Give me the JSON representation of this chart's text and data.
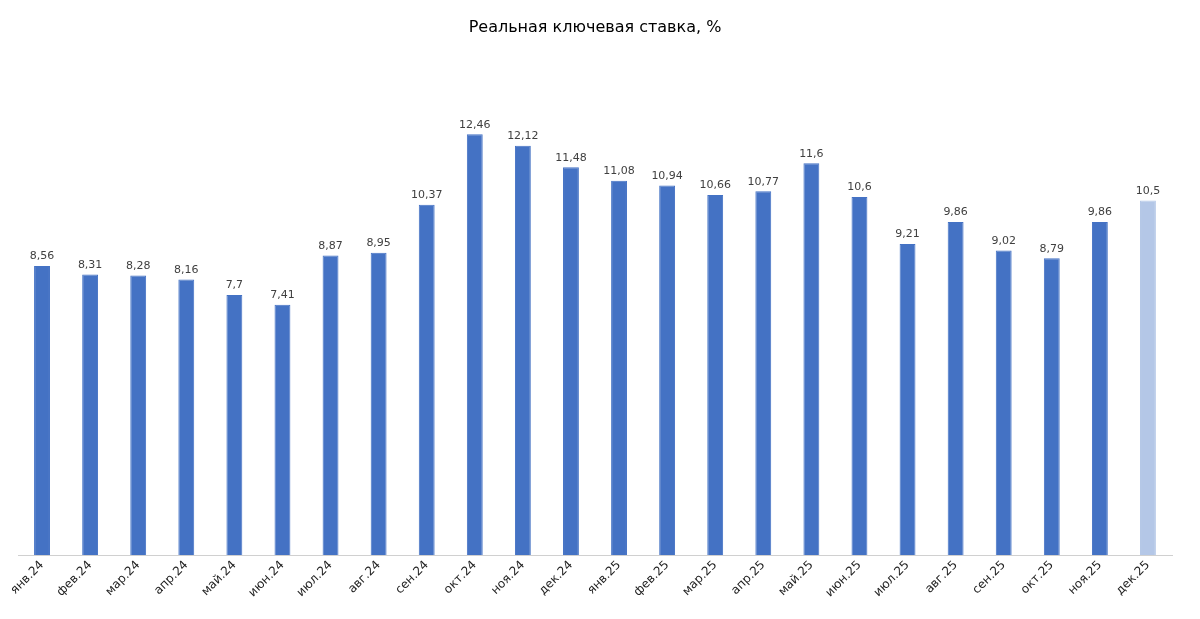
{
  "chart_data": {
    "type": "bar",
    "title": "Реальная ключевая ставка, %",
    "categories": [
      "янв.24",
      "фев.24",
      "мар.24",
      "апр.24",
      "май.24",
      "июн.24",
      "июл.24",
      "авг.24",
      "сен.24",
      "окт.24",
      "ноя.24",
      "дек.24",
      "янв.25",
      "фев.25",
      "мар.25",
      "апр.25",
      "май.25",
      "июн.25",
      "июл.25",
      "авг.25",
      "сен.25",
      "окт.25",
      "ноя.25",
      "дек.25"
    ],
    "values": [
      8.56,
      8.31,
      8.28,
      8.16,
      7.7,
      7.41,
      8.87,
      8.95,
      10.37,
      12.46,
      12.12,
      11.48,
      11.08,
      10.94,
      10.66,
      10.77,
      11.6,
      10.6,
      9.21,
      9.86,
      9.02,
      8.79,
      9.86,
      10.5
    ],
    "value_labels": [
      "8,56",
      "8,31",
      "8,28",
      "8,16",
      "7,7",
      "7,41",
      "8,87",
      "8,95",
      "10,37",
      "12,46",
      "12,12",
      "11,48",
      "11,08",
      "10,94",
      "10,66",
      "10,77",
      "11,6",
      "10,6",
      "9,21",
      "9,86",
      "9,02",
      "8,79",
      "9,86",
      "10,5"
    ],
    "colors": [
      "#4472c4",
      "#4472c4",
      "#4472c4",
      "#4472c4",
      "#4472c4",
      "#4472c4",
      "#4472c4",
      "#4472c4",
      "#4472c4",
      "#4472c4",
      "#4472c4",
      "#4472c4",
      "#4472c4",
      "#4472c4",
      "#4472c4",
      "#4472c4",
      "#4472c4",
      "#4472c4",
      "#4472c4",
      "#4472c4",
      "#4472c4",
      "#4472c4",
      "#4472c4",
      "#b4c7e7"
    ],
    "grid": false,
    "legend": false,
    "tick_labels": "x"
  }
}
